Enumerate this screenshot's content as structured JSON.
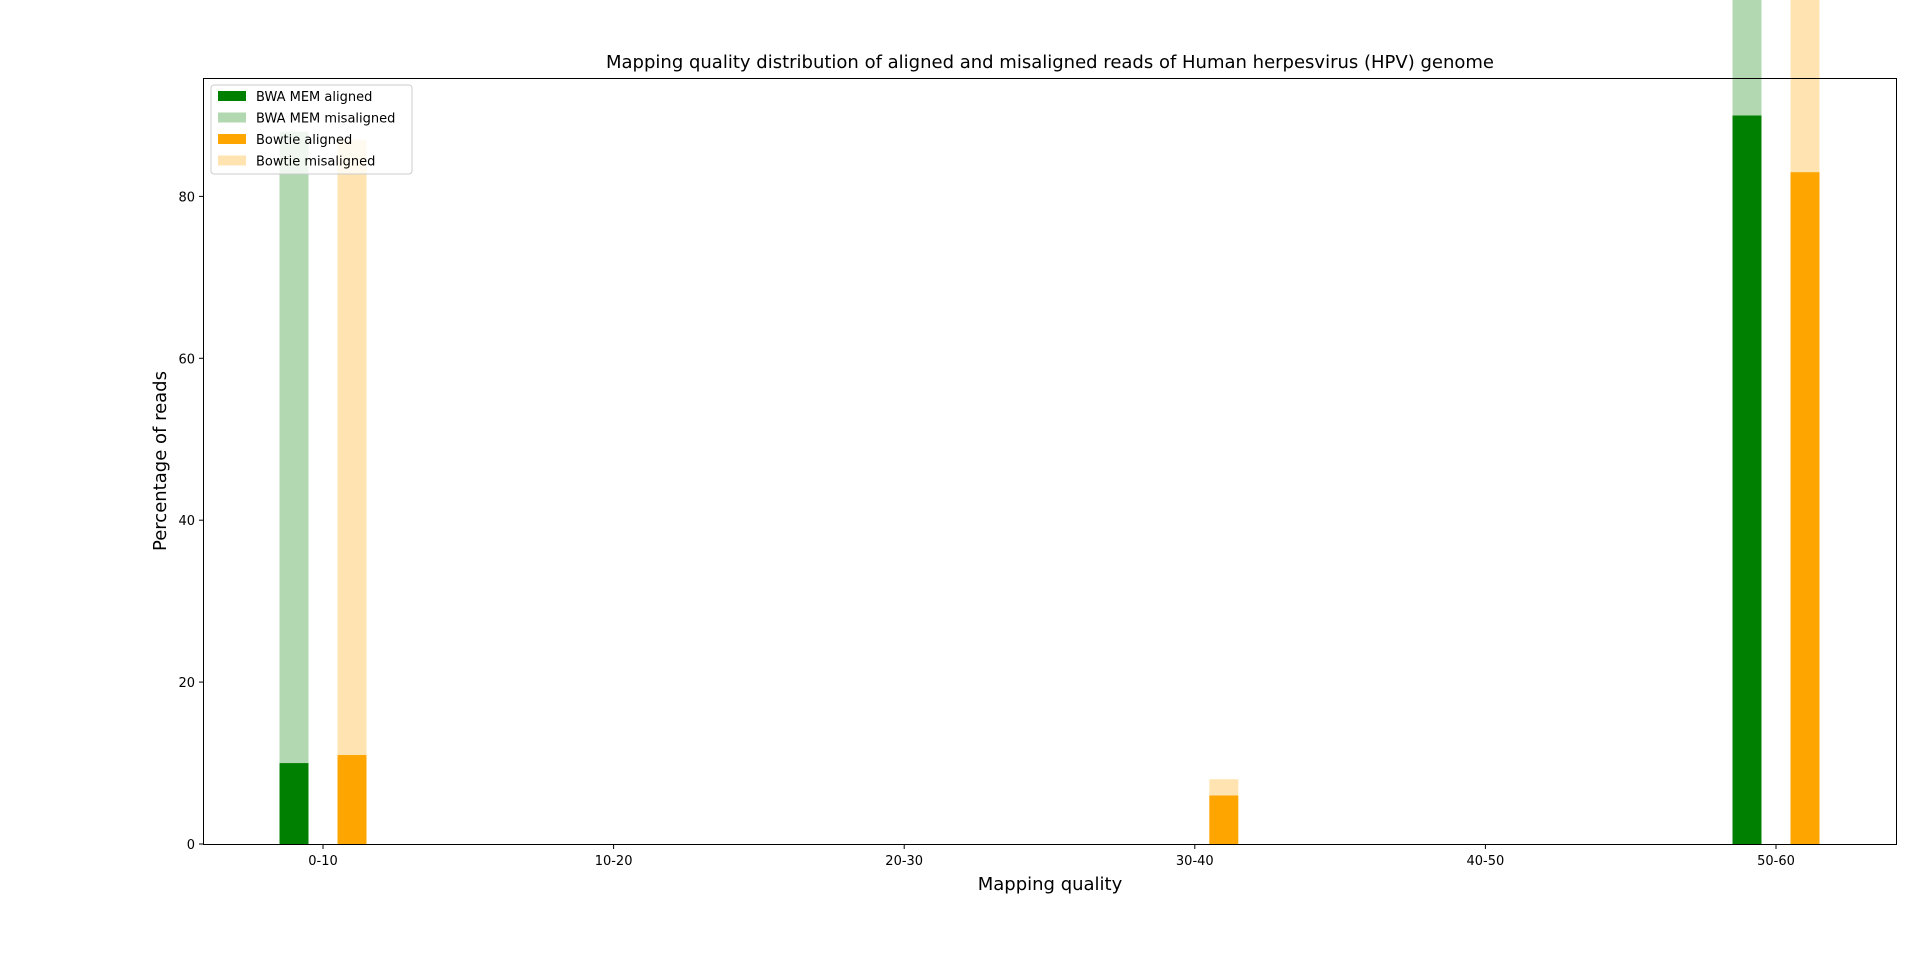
{
  "chart_data": {
    "type": "bar",
    "stacked": true,
    "title": "Mapping quality distribution of aligned and misaligned reads of Human herpesvirus (HPV) genome",
    "xlabel": "Mapping quality",
    "ylabel": "Percentage of reads",
    "categories": [
      "0-10",
      "10-20",
      "20-30",
      "30-40",
      "40-50",
      "50-60"
    ],
    "ylim": [
      0,
      94.5
    ],
    "yticks": [
      0,
      20,
      40,
      60,
      80
    ],
    "grid": false,
    "legend_position": "top-left",
    "groups": [
      {
        "name": "BWA MEM",
        "aligned": {
          "name": "BWA MEM aligned",
          "color": "#008000",
          "values": [
            10,
            0,
            0,
            0,
            0,
            90
          ]
        },
        "misaligned": {
          "name": "BWA MEM misaligned",
          "color": "#b2d8b2",
          "values": [
            78,
            0,
            0,
            0,
            0,
            22
          ]
        }
      },
      {
        "name": "Bowtie",
        "aligned": {
          "name": "Bowtie aligned",
          "color": "#ffa500",
          "values": [
            11,
            0,
            0,
            6,
            0,
            83
          ]
        },
        "misaligned": {
          "name": "Bowtie misaligned",
          "color": "#ffe4b2",
          "values": [
            76,
            0,
            0,
            2,
            0,
            23
          ]
        }
      }
    ],
    "legend": [
      {
        "label": "BWA MEM aligned",
        "color": "#008000"
      },
      {
        "label": "BWA MEM misaligned",
        "color": "#b2d8b2"
      },
      {
        "label": "Bowtie aligned",
        "color": "#ffa500"
      },
      {
        "label": "Bowtie misaligned",
        "color": "#ffe4b2"
      }
    ]
  }
}
